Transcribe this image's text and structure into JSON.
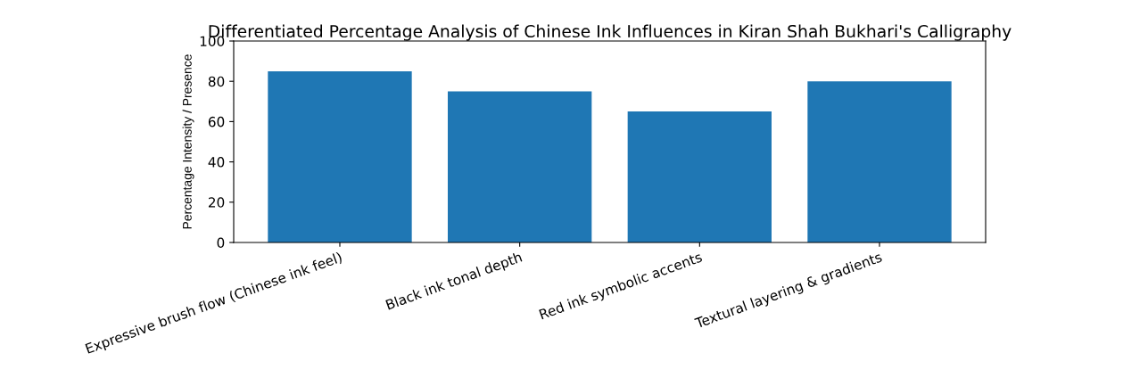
{
  "chart_data": {
    "type": "bar",
    "title": "Differentiated Percentage Analysis of Chinese Ink Influences in Kiran Shah Bukhari's Calligraphy",
    "ylabel": "Percentage Intensity / Presence",
    "categories": [
      "Expressive brush flow (Chinese ink feel)",
      "Black ink tonal depth",
      "Red ink symbolic accents",
      "Textural layering & gradients"
    ],
    "values": [
      85,
      75,
      65,
      80
    ],
    "color": "#1f77b4",
    "ylim": [
      0,
      100
    ],
    "yticks": [
      0,
      20,
      40,
      60,
      80,
      100
    ],
    "grid": false
  }
}
